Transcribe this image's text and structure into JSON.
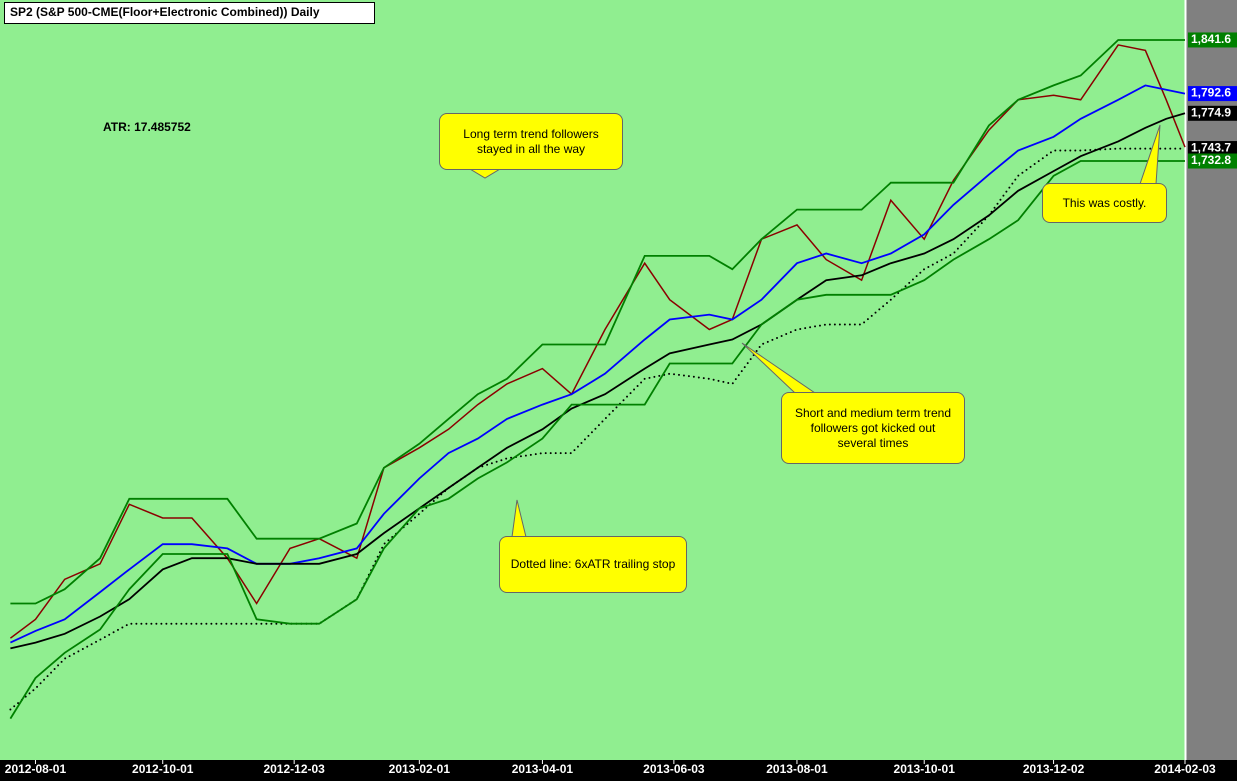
{
  "chart_data": {
    "type": "line",
    "title": "SP2 (S&P 500-CME(Floor+Electronic Combined)) Daily",
    "annotations": [
      "ATR: 17.485752",
      "Long term trend followers stayed in all the way",
      "This was costly.",
      "Short and medium term trend followers got kicked out several times",
      "Dotted line: 6xATR trailing stop"
    ],
    "log_scale": true,
    "background": "#90ee90",
    "x": [
      "2012-07-20",
      "2012-08-01",
      "2012-08-15",
      "2012-09-01",
      "2012-09-15",
      "2012-10-01",
      "2012-10-15",
      "2012-11-01",
      "2012-11-15",
      "2012-12-01",
      "2012-12-15",
      "2013-01-02",
      "2013-01-15",
      "2013-02-01",
      "2013-02-15",
      "2013-03-01",
      "2013-03-15",
      "2013-04-01",
      "2013-04-15",
      "2013-05-01",
      "2013-05-20",
      "2013-06-01",
      "2013-06-20",
      "2013-07-01",
      "2013-07-15",
      "2013-08-01",
      "2013-08-15",
      "2013-09-01",
      "2013-09-15",
      "2013-10-01",
      "2013-10-15",
      "2013-11-01",
      "2013-11-15",
      "2013-12-02",
      "2013-12-15",
      "2014-01-02",
      "2014-01-15",
      "2014-01-25",
      "2014-02-03"
    ],
    "xlim": [
      "2012-07-15",
      "2014-02-03"
    ],
    "xticks": [
      "2012-08-01",
      "2012-10-01",
      "2012-12-03",
      "2013-02-01",
      "2013-04-01",
      "2013-06-03",
      "2013-08-01",
      "2013-10-01",
      "2013-12-02",
      "2014-02-03"
    ],
    "ylim": [
      1282,
      1879
    ],
    "series": [
      {
        "color": "#8b0000",
        "style": "solid",
        "values": [
          1363,
          1376,
          1404,
          1415,
          1458,
          1448,
          1448,
          1419,
          1387,
          1426,
          1433,
          1419,
          1485,
          1500,
          1514,
          1533,
          1549,
          1561,
          1541,
          1592,
          1646,
          1616,
          1592,
          1600,
          1666,
          1678,
          1649,
          1632,
          1699,
          1666,
          1716,
          1760,
          1787,
          1791,
          1787,
          1837,
          1832,
          1787,
          1745
        ]
      },
      {
        "color": "#008000",
        "style": "solid",
        "values": [
          1387,
          1387,
          1397,
          1419,
          1462,
          1462,
          1462,
          1462,
          1433,
          1433,
          1433,
          1444,
          1485,
          1503,
          1522,
          1541,
          1553,
          1580,
          1580,
          1580,
          1652,
          1652,
          1652,
          1641,
          1666,
          1691,
          1691,
          1691,
          1714,
          1714,
          1714,
          1764,
          1787,
          1800,
          1809,
          1841.6,
          1841.6,
          1841.6,
          1841.6
        ],
        "value_labels": [
          null,
          null,
          null,
          null,
          null,
          null,
          null,
          null,
          null,
          null,
          null,
          null,
          null,
          null,
          null,
          null,
          null,
          null,
          null,
          null,
          null,
          null,
          null,
          null,
          null,
          null,
          null,
          null,
          null,
          null,
          null,
          null,
          null,
          null,
          null,
          null,
          null,
          null,
          "1,841.6"
        ]
      },
      {
        "color": "#0000ff",
        "style": "solid",
        "values": [
          1360,
          1368,
          1376,
          1395,
          1411,
          1429,
          1429,
          1426,
          1415,
          1415,
          1419,
          1426,
          1451,
          1477,
          1496,
          1507,
          1522,
          1533,
          1541,
          1557,
          1584,
          1600,
          1604,
          1600,
          1616,
          1646,
          1654,
          1646,
          1654,
          1670,
          1695,
          1721,
          1742,
          1754,
          1770,
          1787,
          1800,
          1796,
          1792.6
        ],
        "value_labels": [
          null,
          null,
          null,
          null,
          null,
          null,
          null,
          null,
          null,
          null,
          null,
          null,
          null,
          null,
          null,
          null,
          null,
          null,
          null,
          null,
          null,
          null,
          null,
          null,
          null,
          null,
          null,
          null,
          null,
          null,
          null,
          null,
          null,
          null,
          null,
          null,
          null,
          null,
          "1,792.6"
        ]
      },
      {
        "color": "#000000",
        "style": "solid",
        "values": [
          1356,
          1360,
          1366,
          1378,
          1390,
          1411,
          1419,
          1419,
          1415,
          1415,
          1415,
          1422,
          1437,
          1455,
          1470,
          1485,
          1500,
          1514,
          1530,
          1541,
          1561,
          1573,
          1580,
          1584,
          1596,
          1616,
          1632,
          1636,
          1646,
          1654,
          1666,
          1686,
          1707,
          1724,
          1737,
          1750,
          1762,
          1770,
          1774.9
        ],
        "value_labels": [
          null,
          null,
          null,
          null,
          null,
          null,
          null,
          null,
          null,
          null,
          null,
          null,
          null,
          null,
          null,
          null,
          null,
          null,
          null,
          null,
          null,
          null,
          null,
          null,
          null,
          null,
          null,
          null,
          null,
          null,
          null,
          null,
          null,
          null,
          null,
          null,
          null,
          null,
          "1,774.9"
        ]
      },
      {
        "color": "#000000",
        "style": "dotted",
        "values": [
          1315,
          1329,
          1349,
          1362,
          1373,
          1373,
          1373,
          1373,
          1373,
          1373,
          1373,
          1390,
          1429,
          1451,
          1470,
          1485,
          1492,
          1496,
          1496,
          1522,
          1553,
          1557,
          1553,
          1549,
          1580,
          1592,
          1596,
          1596,
          1616,
          1641,
          1654,
          1686,
          1720,
          1742,
          1742,
          1743.7,
          1743.7,
          1743.7,
          1743.7
        ],
        "value_labels": [
          null,
          null,
          null,
          null,
          null,
          null,
          null,
          null,
          null,
          null,
          null,
          null,
          null,
          null,
          null,
          null,
          null,
          null,
          null,
          null,
          null,
          null,
          null,
          null,
          null,
          null,
          null,
          null,
          null,
          null,
          null,
          null,
          null,
          null,
          null,
          null,
          null,
          null,
          "1,743.7"
        ]
      },
      {
        "color": "#008000",
        "style": "solid",
        "values": [
          1309,
          1336,
          1353,
          1369,
          1397,
          1422,
          1422,
          1422,
          1376,
          1373,
          1373,
          1390,
          1426,
          1455,
          1462,
          1477,
          1489,
          1507,
          1533,
          1533,
          1533,
          1565,
          1565,
          1565,
          1596,
          1616,
          1620,
          1620,
          1620,
          1632,
          1649,
          1666,
          1682,
          1720,
          1732.8,
          1732.8,
          1732.8,
          1732.8,
          1732.8
        ],
        "value_labels": [
          null,
          null,
          null,
          null,
          null,
          null,
          null,
          null,
          null,
          null,
          null,
          null,
          null,
          null,
          null,
          null,
          null,
          null,
          null,
          null,
          null,
          null,
          null,
          null,
          null,
          null,
          null,
          null,
          null,
          null,
          null,
          null,
          null,
          null,
          null,
          null,
          null,
          null,
          "1,732.8"
        ]
      }
    ]
  }
}
